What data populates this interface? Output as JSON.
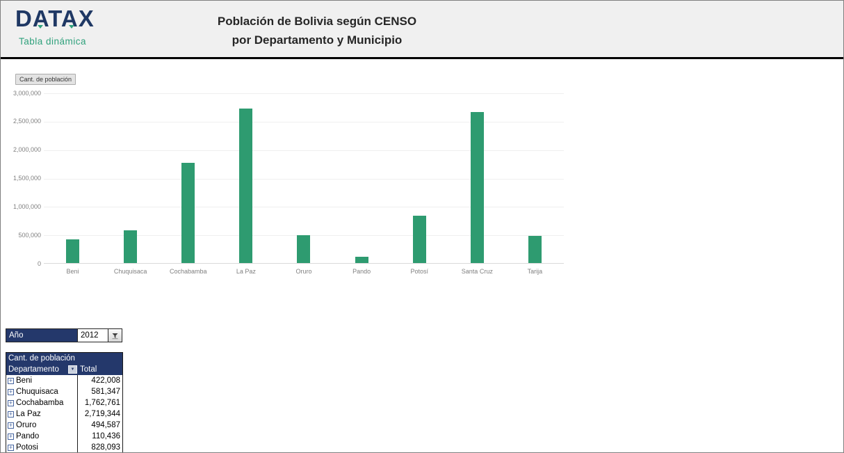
{
  "header": {
    "logo_text": "DATAX",
    "logo_subtitle": "Tabla dinámica",
    "title_line1": "Población de Bolivia según CENSO",
    "title_line2": "por Departamento y Municipio"
  },
  "chart": {
    "field_button_label": "Cant. de población"
  },
  "chart_data": {
    "type": "bar",
    "title": "",
    "categories": [
      "Beni",
      "Chuquisaca",
      "Cochabamba",
      "La Paz",
      "Oruro",
      "Pando",
      "Potosí",
      "Santa Cruz",
      "Tarija"
    ],
    "values": [
      422008,
      581347,
      1762761,
      2719344,
      494587,
      110436,
      828093,
      2655000,
      482000
    ],
    "xlabel": "",
    "ylabel": "",
    "ylim": [
      0,
      3000000
    ],
    "ytick_labels": [
      "0",
      "500,000",
      "1,000,000",
      "1,500,000",
      "2,000,000",
      "2,500,000",
      "3,000,000"
    ],
    "grid": true,
    "legend": "none",
    "bar_color": "#2e9b70"
  },
  "year_filter": {
    "label": "Año",
    "value": "2012"
  },
  "pivot_table": {
    "title": "Cant. de población",
    "row_header": "Departamento",
    "value_header": "Total",
    "rows": [
      {
        "label": "Beni",
        "total": "422,008"
      },
      {
        "label": "Chuquisaca",
        "total": "581,347"
      },
      {
        "label": "Cochabamba",
        "total": "1,762,761"
      },
      {
        "label": "La Paz",
        "total": "2,719,344"
      },
      {
        "label": "Oruro",
        "total": "494,587"
      },
      {
        "label": "Pando",
        "total": "110,436"
      },
      {
        "label": "Potosi",
        "total": "828,093"
      }
    ]
  },
  "colors": {
    "navy": "#24386b",
    "logo_navy": "#1f3864",
    "green_text": "#2fa17c",
    "bar_green": "#2e9b70"
  }
}
